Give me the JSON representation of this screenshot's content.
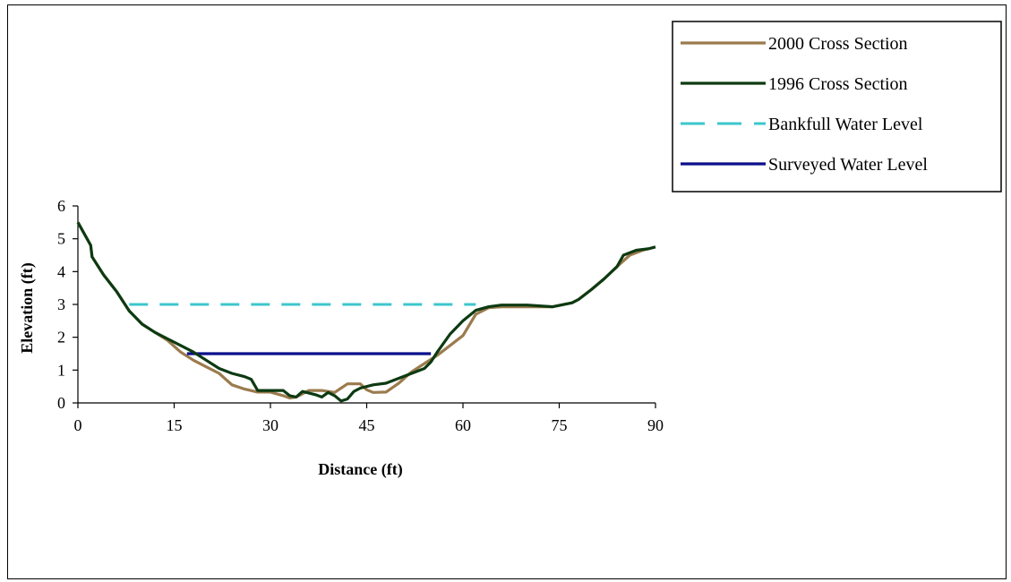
{
  "chart_data": {
    "type": "line",
    "xlabel": "Distance  (ft)",
    "ylabel": "Elevation  (ft)",
    "xlim": [
      0,
      90
    ],
    "ylim": [
      0,
      6
    ],
    "xticks": [
      0,
      15,
      30,
      45,
      60,
      75,
      90
    ],
    "yticks": [
      0,
      1,
      2,
      3,
      4,
      5,
      6
    ],
    "grid": false,
    "legend": "top-right",
    "series": [
      {
        "name": "2000 Cross Section",
        "color": "#9b7b4d",
        "style": "solid",
        "x": [
          0,
          2,
          2.2,
          4,
          6,
          8,
          10,
          12,
          14,
          16,
          18,
          20,
          22,
          24,
          26,
          28,
          30,
          32,
          33,
          34,
          36,
          38,
          40,
          42,
          44,
          45,
          46,
          48,
          50,
          52,
          54,
          56,
          58,
          59,
          60,
          62,
          64,
          66,
          70,
          74,
          77,
          78,
          80,
          82,
          84,
          86,
          88,
          89
        ],
        "y": [
          5.5,
          4.8,
          4.45,
          3.9,
          3.4,
          2.8,
          2.4,
          2.15,
          1.9,
          1.55,
          1.3,
          1.1,
          0.9,
          0.55,
          0.42,
          0.33,
          0.33,
          0.22,
          0.15,
          0.18,
          0.38,
          0.38,
          0.32,
          0.58,
          0.58,
          0.4,
          0.32,
          0.33,
          0.6,
          0.95,
          1.2,
          1.45,
          1.75,
          1.9,
          2.05,
          2.7,
          2.9,
          2.93,
          2.93,
          2.93,
          3.05,
          3.15,
          3.45,
          3.78,
          4.15,
          4.5,
          4.65,
          4.7
        ]
      },
      {
        "name": "1996 Cross Section",
        "color": "#0d3a12",
        "style": "solid",
        "x": [
          0,
          2,
          2.2,
          4,
          6,
          8,
          10,
          12,
          14,
          16,
          18,
          20,
          22,
          24,
          26,
          27,
          28,
          30,
          32,
          33,
          34,
          35,
          37,
          38,
          39,
          40,
          41,
          42,
          43,
          44,
          46,
          48,
          50,
          52,
          54,
          55,
          56,
          58,
          60,
          62,
          64,
          66,
          70,
          74,
          77,
          78,
          80,
          82,
          84,
          85,
          87,
          89,
          90
        ],
        "y": [
          5.5,
          4.8,
          4.45,
          3.9,
          3.4,
          2.8,
          2.4,
          2.15,
          1.95,
          1.75,
          1.55,
          1.3,
          1.05,
          0.9,
          0.8,
          0.72,
          0.38,
          0.38,
          0.38,
          0.22,
          0.18,
          0.35,
          0.25,
          0.18,
          0.32,
          0.22,
          0.06,
          0.12,
          0.35,
          0.45,
          0.55,
          0.6,
          0.75,
          0.9,
          1.05,
          1.25,
          1.55,
          2.1,
          2.5,
          2.82,
          2.93,
          2.98,
          2.98,
          2.93,
          3.05,
          3.15,
          3.45,
          3.78,
          4.15,
          4.5,
          4.65,
          4.7,
          4.75
        ]
      },
      {
        "name": "Bankfull Water Level",
        "color": "#3cc7cc",
        "style": "dashed",
        "x": [
          8,
          62
        ],
        "y": [
          3,
          3
        ]
      },
      {
        "name": "Surveyed Water Level",
        "color": "#0a0f8c",
        "style": "solid",
        "x": [
          17,
          55
        ],
        "y": [
          1.5,
          1.5
        ]
      }
    ]
  }
}
